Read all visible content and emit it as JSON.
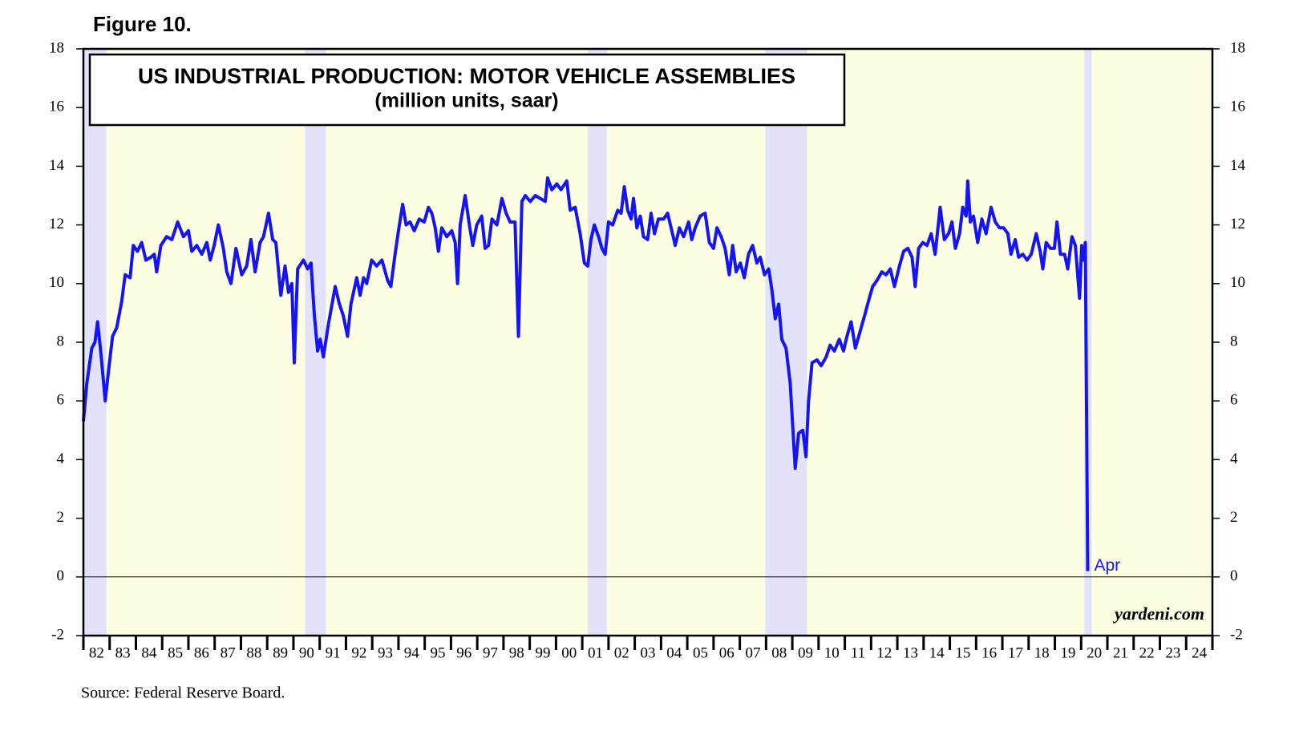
{
  "chart_data": {
    "type": "line",
    "figure_label": "Figure 10.",
    "title": "US INDUSTRIAL PRODUCTION: MOTOR VEHICLE ASSEMBLIES",
    "subtitle": "(million units, saar)",
    "source": "Source: Federal Reserve Board.",
    "watermark": "yardeni.com",
    "annotation": "Apr",
    "background": "#fefee3",
    "recession_color": "#e2e3fa",
    "recessions": [
      [
        1982.0,
        1982.88
      ],
      [
        1990.44,
        1991.24
      ],
      [
        2001.21,
        2001.94
      ],
      [
        2007.97,
        2009.56
      ],
      [
        2020.12,
        2020.4
      ]
    ],
    "xlim": [
      1982,
      2025
    ],
    "xticks": [
      {
        "value": 1982,
        "label": "82"
      },
      {
        "value": 1983,
        "label": "83"
      },
      {
        "value": 1984,
        "label": "84"
      },
      {
        "value": 1985,
        "label": "85"
      },
      {
        "value": 1986,
        "label": "86"
      },
      {
        "value": 1987,
        "label": "87"
      },
      {
        "value": 1988,
        "label": "88"
      },
      {
        "value": 1989,
        "label": "89"
      },
      {
        "value": 1990,
        "label": "90"
      },
      {
        "value": 1991,
        "label": "91"
      },
      {
        "value": 1992,
        "label": "92"
      },
      {
        "value": 1993,
        "label": "93"
      },
      {
        "value": 1994,
        "label": "94"
      },
      {
        "value": 1995,
        "label": "95"
      },
      {
        "value": 1996,
        "label": "96"
      },
      {
        "value": 1997,
        "label": "97"
      },
      {
        "value": 1998,
        "label": "98"
      },
      {
        "value": 1999,
        "label": "99"
      },
      {
        "value": 2000,
        "label": "00"
      },
      {
        "value": 2001,
        "label": "01"
      },
      {
        "value": 2002,
        "label": "02"
      },
      {
        "value": 2003,
        "label": "03"
      },
      {
        "value": 2004,
        "label": "04"
      },
      {
        "value": 2005,
        "label": "05"
      },
      {
        "value": 2006,
        "label": "06"
      },
      {
        "value": 2007,
        "label": "07"
      },
      {
        "value": 2008,
        "label": "08"
      },
      {
        "value": 2009,
        "label": "09"
      },
      {
        "value": 2010,
        "label": "10"
      },
      {
        "value": 2011,
        "label": "11"
      },
      {
        "value": 2012,
        "label": "12"
      },
      {
        "value": 2013,
        "label": "13"
      },
      {
        "value": 2014,
        "label": "14"
      },
      {
        "value": 2015,
        "label": "15"
      },
      {
        "value": 2016,
        "label": "16"
      },
      {
        "value": 2017,
        "label": "17"
      },
      {
        "value": 2018,
        "label": "18"
      },
      {
        "value": 2019,
        "label": "19"
      },
      {
        "value": 2020,
        "label": "20"
      },
      {
        "value": 2021,
        "label": "21"
      },
      {
        "value": 2022,
        "label": "22"
      },
      {
        "value": 2023,
        "label": "23"
      },
      {
        "value": 2024,
        "label": "24"
      }
    ],
    "ylim": [
      -2,
      18
    ],
    "yticks": [
      -2,
      0,
      2,
      4,
      6,
      8,
      10,
      12,
      14,
      16,
      18
    ],
    "grid": false,
    "series": [
      {
        "name": "Motor vehicle assemblies",
        "color": "#1414f5",
        "x": [
          1982.0,
          1982.13,
          1982.32,
          1982.44,
          1982.54,
          1982.67,
          1982.83,
          1982.98,
          1983.11,
          1983.27,
          1983.46,
          1983.59,
          1983.78,
          1983.9,
          1984.06,
          1984.22,
          1984.38,
          1984.57,
          1984.7,
          1984.79,
          1984.95,
          1985.17,
          1985.37,
          1985.59,
          1985.81,
          1986.0,
          1986.13,
          1986.32,
          1986.51,
          1986.7,
          1986.83,
          1986.98,
          1987.14,
          1987.33,
          1987.46,
          1987.62,
          1987.81,
          1988.03,
          1988.22,
          1988.38,
          1988.54,
          1988.73,
          1988.86,
          1989.05,
          1989.21,
          1989.33,
          1989.52,
          1989.68,
          1989.81,
          1989.94,
          1990.03,
          1990.16,
          1990.38,
          1990.54,
          1990.67,
          1990.79,
          1990.92,
          1991.02,
          1991.14,
          1991.33,
          1991.59,
          1991.75,
          1991.9,
          1992.06,
          1992.19,
          1992.41,
          1992.54,
          1992.67,
          1992.79,
          1992.98,
          1993.17,
          1993.37,
          1993.59,
          1993.71,
          1993.87,
          1994.0,
          1994.16,
          1994.29,
          1994.44,
          1994.6,
          1994.79,
          1994.98,
          1995.14,
          1995.27,
          1995.4,
          1995.52,
          1995.65,
          1995.84,
          1996.03,
          1996.16,
          1996.25,
          1996.35,
          1996.54,
          1996.7,
          1996.83,
          1996.98,
          1997.17,
          1997.3,
          1997.43,
          1997.56,
          1997.75,
          1997.94,
          1998.1,
          1998.25,
          1998.44,
          1998.57,
          1998.7,
          1998.83,
          1999.02,
          1999.21,
          1999.4,
          1999.59,
          1999.68,
          1999.84,
          2000.03,
          2000.19,
          2000.41,
          2000.54,
          2000.73,
          2000.92,
          2001.08,
          2001.21,
          2001.33,
          2001.46,
          2001.62,
          2001.75,
          2001.87,
          2002.0,
          2002.16,
          2002.35,
          2002.48,
          2002.6,
          2002.73,
          2002.86,
          2002.95,
          2003.08,
          2003.21,
          2003.33,
          2003.49,
          2003.62,
          2003.75,
          2003.9,
          2004.1,
          2004.25,
          2004.41,
          2004.54,
          2004.7,
          2004.86,
          2005.05,
          2005.17,
          2005.3,
          2005.49,
          2005.68,
          2005.84,
          2006.0,
          2006.13,
          2006.29,
          2006.44,
          2006.6,
          2006.73,
          2006.86,
          2007.02,
          2007.17,
          2007.33,
          2007.49,
          2007.65,
          2007.78,
          2007.94,
          2008.1,
          2008.22,
          2008.35,
          2008.48,
          2008.6,
          2008.76,
          2008.92,
          2009.11,
          2009.24,
          2009.4,
          2009.52,
          2009.62,
          2009.75,
          2009.94,
          2010.1,
          2010.29,
          2010.44,
          2010.6,
          2010.79,
          2010.95,
          2011.08,
          2011.24,
          2011.4,
          2011.56,
          2011.75,
          2011.9,
          2012.06,
          2012.22,
          2012.41,
          2012.57,
          2012.73,
          2012.89,
          2013.08,
          2013.24,
          2013.4,
          2013.56,
          2013.68,
          2013.81,
          2013.97,
          2014.13,
          2014.29,
          2014.44,
          2014.63,
          2014.79,
          2014.95,
          2015.08,
          2015.21,
          2015.37,
          2015.49,
          2015.62,
          2015.68,
          2015.78,
          2015.9,
          2016.06,
          2016.22,
          2016.38,
          2016.57,
          2016.73,
          2016.89,
          2017.05,
          2017.21,
          2017.33,
          2017.49,
          2017.62,
          2017.78,
          2017.94,
          2018.1,
          2018.29,
          2018.44,
          2018.54,
          2018.67,
          2018.83,
          2018.98,
          2019.08,
          2019.21,
          2019.37,
          2019.49,
          2019.65,
          2019.78,
          2019.94,
          2020.02,
          2020.08,
          2020.16,
          2020.25
        ],
        "values": [
          5.3,
          6.6,
          7.8,
          8.0,
          8.7,
          7.6,
          6.0,
          7.2,
          8.2,
          8.5,
          9.4,
          10.3,
          10.2,
          11.3,
          11.1,
          11.4,
          10.8,
          10.9,
          11.0,
          10.4,
          11.3,
          11.6,
          11.5,
          12.1,
          11.6,
          11.8,
          11.1,
          11.3,
          11.0,
          11.4,
          10.8,
          11.3,
          12.0,
          11.2,
          10.4,
          10.0,
          11.2,
          10.3,
          10.6,
          11.5,
          10.4,
          11.4,
          11.6,
          12.4,
          11.5,
          11.4,
          9.6,
          10.6,
          9.7,
          10.0,
          7.3,
          10.5,
          10.8,
          10.5,
          10.7,
          9.0,
          7.7,
          8.1,
          7.5,
          8.6,
          9.9,
          9.3,
          8.9,
          8.2,
          9.3,
          10.2,
          9.6,
          10.2,
          10.0,
          10.8,
          10.6,
          10.8,
          10.1,
          9.9,
          11.0,
          11.8,
          12.7,
          12.0,
          12.1,
          11.8,
          12.2,
          12.1,
          12.6,
          12.4,
          11.9,
          11.1,
          11.9,
          11.6,
          11.8,
          11.4,
          10.0,
          12.0,
          13.0,
          12.0,
          11.3,
          12.0,
          12.3,
          11.2,
          11.3,
          12.2,
          12.0,
          12.9,
          12.4,
          12.1,
          12.1,
          8.2,
          12.8,
          13.0,
          12.8,
          13.0,
          12.9,
          12.8,
          13.6,
          13.2,
          13.4,
          13.2,
          13.5,
          12.5,
          12.6,
          11.7,
          10.7,
          10.6,
          11.5,
          12.0,
          11.6,
          11.2,
          11.0,
          12.1,
          12.0,
          12.5,
          12.4,
          13.3,
          12.5,
          12.2,
          12.9,
          11.9,
          12.3,
          11.6,
          11.5,
          12.4,
          11.7,
          12.2,
          12.2,
          12.4,
          11.8,
          11.3,
          11.9,
          11.6,
          12.1,
          11.5,
          11.9,
          12.3,
          12.4,
          11.4,
          11.2,
          11.9,
          11.6,
          11.2,
          10.3,
          11.3,
          10.4,
          10.7,
          10.2,
          11.0,
          11.3,
          10.7,
          10.9,
          10.3,
          10.5,
          9.8,
          8.8,
          9.3,
          8.1,
          7.8,
          6.6,
          3.7,
          4.9,
          5.0,
          4.1,
          6.0,
          7.3,
          7.4,
          7.2,
          7.5,
          7.9,
          7.7,
          8.1,
          7.7,
          8.2,
          8.7,
          7.8,
          8.3,
          8.9,
          9.4,
          9.9,
          10.1,
          10.4,
          10.3,
          10.5,
          9.9,
          10.6,
          11.1,
          11.2,
          10.9,
          9.9,
          11.2,
          11.4,
          11.3,
          11.7,
          11.0,
          12.6,
          11.5,
          11.7,
          12.1,
          11.2,
          11.7,
          12.6,
          12.3,
          13.5,
          12.1,
          12.3,
          11.4,
          12.2,
          11.7,
          12.6,
          12.1,
          11.9,
          11.9,
          11.7,
          11.0,
          11.5,
          10.9,
          11.0,
          10.8,
          11.0,
          11.7,
          11.1,
          10.5,
          11.4,
          11.2,
          11.2,
          12.1,
          11.0,
          11.0,
          10.5,
          11.6,
          11.3,
          9.5,
          11.3,
          10.8,
          11.4,
          0.2
        ]
      }
    ]
  }
}
